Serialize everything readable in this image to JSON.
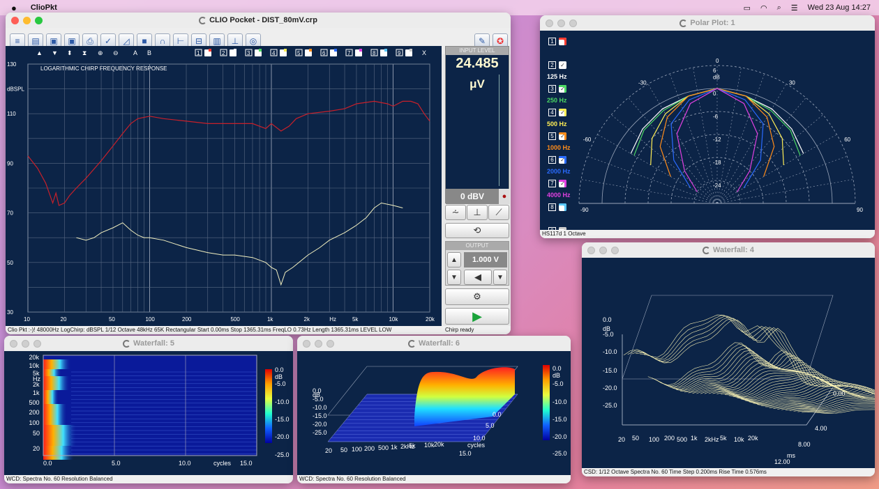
{
  "menubar": {
    "app": "ClioPkt",
    "datetime": "Wed 23 Aug 14:27"
  },
  "main": {
    "title": "CLIO Pocket - DIST_80mV.crp",
    "graph_title": "LOGARITHMIC CHIRP FREQUENCY RESPONSE",
    "yunit": "dBSPL",
    "xunit": "Hz",
    "yticks": [
      "130",
      "110",
      "90",
      "70",
      "50",
      "30"
    ],
    "xticks": [
      "10",
      "20",
      "50",
      "100",
      "200",
      "500",
      "1k",
      "2k",
      "5k",
      "10k",
      "20k"
    ],
    "channels": [
      "1",
      "2",
      "3",
      "4",
      "5",
      "6",
      "7",
      "8",
      "9"
    ],
    "misc_a": "A",
    "misc_b": "B",
    "misc_x": "X",
    "input_label": "INPUT LEVEL",
    "input_value": "24.485",
    "input_unit": "μV",
    "dbv": "0 dBV",
    "output_label": "OUTPUT",
    "output_value": "1.000 V",
    "status": "Clio Pkt :-)! 48000Hz     LogChirp: dBSPL  1/12 Octave  48kHz  65K  Rectangular  Start 0.00ms  Stop 1365.31ms  FreqLO 0.73Hz  Length 1365.31ms  LEVEL LOW",
    "status_right": "Chirp ready",
    "colors": {
      "red_curve": "#c8202a",
      "yellow_curve": "#f2f0c0",
      "bg": "#0c2447"
    }
  },
  "polar": {
    "title": "Polar Plot: 1",
    "angles": [
      "-90",
      "-60",
      "-30",
      "0",
      "30",
      "60",
      "90"
    ],
    "rings": [
      "6",
      "dB",
      "0",
      "-6",
      "-12",
      "-18",
      "-24"
    ],
    "series": [
      {
        "num": "1",
        "label": "",
        "color": "#ff3b30",
        "checked": false
      },
      {
        "num": "2",
        "label": "125 Hz",
        "color": "#ffffff",
        "checked": true
      },
      {
        "num": "3",
        "label": "250 Hz",
        "color": "#4cd964",
        "checked": true
      },
      {
        "num": "4",
        "label": "500 Hz",
        "color": "#ffee55",
        "checked": true
      },
      {
        "num": "5",
        "label": "1000 Hz",
        "color": "#ff8c1a",
        "checked": true
      },
      {
        "num": "6",
        "label": "2000 Hz",
        "color": "#2a6bff",
        "checked": true
      },
      {
        "num": "7",
        "label": "4000 Hz",
        "color": "#e040e0",
        "checked": true
      },
      {
        "num": "8",
        "label": "",
        "color": "#5ac8fa",
        "checked": false
      },
      {
        "num": "9",
        "label": "",
        "color": "#cccccc",
        "checked": false
      }
    ],
    "status": "HS117d  1 Octave"
  },
  "wf4": {
    "title": "Waterfall: 4",
    "yticks": [
      "0.0",
      "dB",
      "-5.0",
      "-10.0",
      "-15.0",
      "-20.0",
      "-25.0"
    ],
    "xticks": [
      "20",
      "50",
      "100",
      "200",
      "500",
      "1k",
      "2kHz",
      "5k",
      "10k",
      "20k"
    ],
    "zticks": [
      "0.00",
      "4.00",
      "8.00",
      "ms",
      "12.00"
    ],
    "status": "CSD:  1/12 Octave  Spectra No. 60  Time Step 0.200ms  Rise Time 0.576ms"
  },
  "wf5": {
    "title": "Waterfall: 5",
    "yticks": [
      "20k",
      "10k",
      "5k",
      "Hz",
      "2k",
      "1k",
      "500",
      "200",
      "100",
      "50",
      "20"
    ],
    "xticks": [
      "0.0",
      "5.0",
      "10.0",
      "cycles",
      "15.0"
    ],
    "scale": [
      "0.0",
      "dB",
      "-5.0",
      "-10.0",
      "-15.0",
      "-20.0",
      "-25.0"
    ],
    "status": "WCD:  Spectra No. 60  Resolution Balanced"
  },
  "wf6": {
    "title": "Waterfall: 6",
    "yticks": [
      "0.0",
      "dB",
      "-5.0",
      "-10.0",
      "-15.0",
      "-20.0",
      "-25.0"
    ],
    "xticks": [
      "20",
      "50",
      "100",
      "200",
      "500",
      "1k",
      "2kHz",
      "5k",
      "10k",
      "20k"
    ],
    "zticks": [
      "0.0",
      "5.0",
      "10.0",
      "cycles",
      "15.0"
    ],
    "scale": [
      "0.0",
      "dB",
      "-5.0",
      "-10.0",
      "-15.0",
      "-20.0",
      "-25.0"
    ],
    "status": "WCD:  Spectra No. 60  Resolution Balanced"
  }
}
